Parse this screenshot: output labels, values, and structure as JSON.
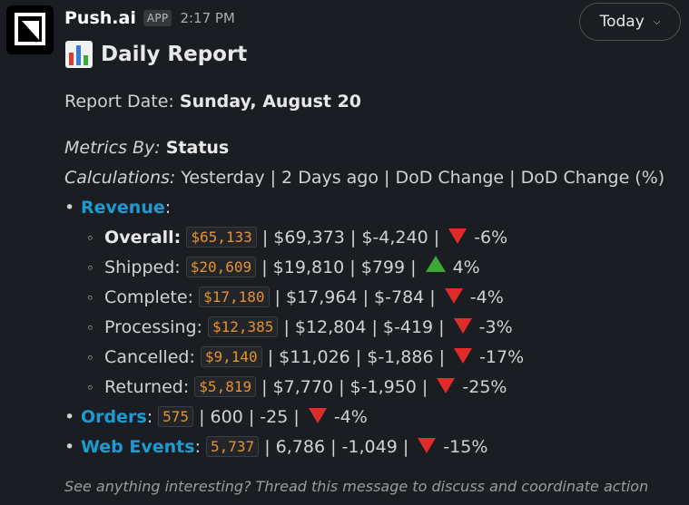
{
  "header": {
    "app_name": "Push.ai",
    "badge": "APP",
    "time": "2:17 PM",
    "date_filter": "Today"
  },
  "report": {
    "title": "Daily Report",
    "date_label": "Report Date:",
    "date_value": "Sunday, August 20",
    "metrics_by_label": "Metrics By:",
    "metrics_by_value": "Status",
    "calculations_label": "Calculations:",
    "calculations_value": "Yesterday | 2 Days ago | DoD Change | DoD Change (%)",
    "revenue_label": "Revenue",
    "revenue_rows": [
      {
        "label": "Overall:",
        "current": "$65,133",
        "rest": "| $69,373 | $-4,240 |",
        "direction": "down",
        "pct": "-6%"
      },
      {
        "label": "Shipped:",
        "current": "$20,609",
        "rest": "| $19,810 | $799 |",
        "direction": "up",
        "pct": "4%"
      },
      {
        "label": "Complete:",
        "current": "$17,180",
        "rest": "| $17,964 | $-784 |",
        "direction": "down",
        "pct": "-4%"
      },
      {
        "label": "Processing:",
        "current": "$12,385",
        "rest": "| $12,804 | $-419 |",
        "direction": "down",
        "pct": "-3%"
      },
      {
        "label": "Cancelled:",
        "current": "$9,140",
        "rest": "| $11,026 | $-1,886 |",
        "direction": "down",
        "pct": "-17%"
      },
      {
        "label": "Returned:",
        "current": "$5,819",
        "rest": "| $7,770 | $-1,950 |",
        "direction": "down",
        "pct": "-25%"
      }
    ],
    "orders": {
      "label": "Orders",
      "current": "575",
      "rest": "| 600 | -25 |",
      "direction": "down",
      "pct": "-4%"
    },
    "web_events": {
      "label": "Web Events",
      "current": "5,737",
      "rest": "| 6,786 | -1,049 |",
      "direction": "down",
      "pct": "-15%"
    }
  },
  "footer": {
    "text": "See anything interesting? Thread this message to discuss and coordinate action"
  },
  "colors": {
    "background": "#1a1d21",
    "link": "#1d9bd1",
    "code_text": "#e8912d",
    "down_arrow": "#e02b2b",
    "up_arrow": "#3aa935"
  }
}
